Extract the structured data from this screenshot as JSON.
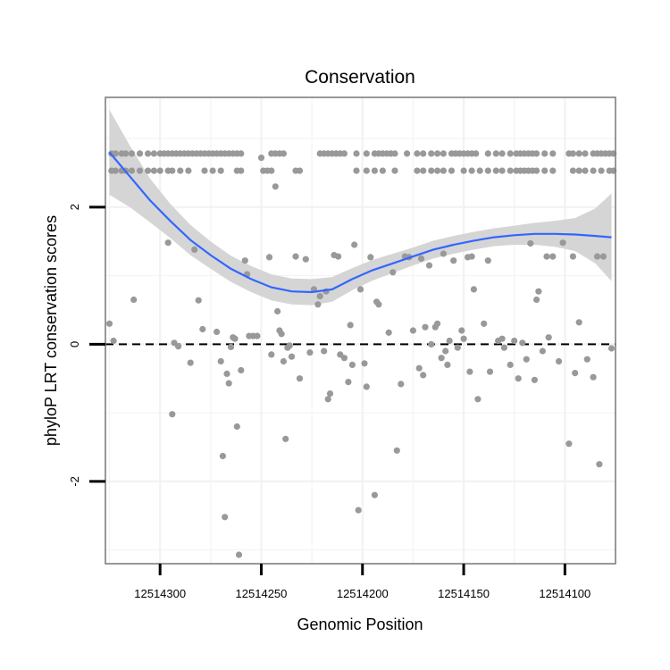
{
  "chart_data": {
    "type": "scatter",
    "title": "Conservation",
    "xlabel": "Genomic Position",
    "ylabel": "phyloP LRT conservation scores",
    "xlim": [
      12514327,
      12514075
    ],
    "ylim": [
      -3.2,
      3.6
    ],
    "x_reversed": true,
    "x_ticks": [
      12514300,
      12514250,
      12514200,
      12514150,
      12514100
    ],
    "x_tick_labels": [
      "12514300",
      "12514250",
      "12514200",
      "12514150",
      "12514100"
    ],
    "y_ticks": [
      -2,
      0,
      2
    ],
    "y_tick_labels": [
      "-2",
      "0",
      "2"
    ],
    "grid": true,
    "reference_line": {
      "y": 0,
      "style": "dashed"
    },
    "colors": {
      "points": "#999999",
      "smooth": "#3366ff",
      "ribbon": "#d3d3d3",
      "panel_border": "#7f7f7f",
      "grid": "#f2f2f2"
    },
    "x_top_band": [
      12514324,
      12514322,
      12514319,
      12514317,
      12514314,
      12514310,
      12514306,
      12514303,
      12514300,
      12514298,
      12514296,
      12514294,
      12514292,
      12514290,
      12514288,
      12514286,
      12514284,
      12514282,
      12514280,
      12514278,
      12514276,
      12514274,
      12514272,
      12514270,
      12514268,
      12514266,
      12514264,
      12514262,
      12514260,
      12514245,
      12514243,
      12514241,
      12514239,
      12514221,
      12514219,
      12514217,
      12514215,
      12514213,
      12514211,
      12514209,
      12514203,
      12514198,
      12514194,
      12514192,
      12514190,
      12514188,
      12514186,
      12514184,
      12514178,
      12514173,
      12514170,
      12514166,
      12514163,
      12514160,
      12514156,
      12514154,
      12514152,
      12514150,
      12514148,
      12514146,
      12514144,
      12514138,
      12514134,
      12514131,
      12514127,
      12514124,
      12514122,
      12514120,
      12514118,
      12514116,
      12514114,
      12514110,
      12514106,
      12514098,
      12514096,
      12514093,
      12514090,
      12514086,
      12514084,
      12514082,
      12514080,
      12514078,
      12514076
    ],
    "x_second_band": [
      12514324,
      12514322,
      12514319,
      12514317,
      12514314,
      12514310,
      12514306,
      12514303,
      12514300,
      12514296,
      12514294,
      12514290,
      12514286,
      12514278,
      12514274,
      12514270,
      12514262,
      12514260,
      12514249,
      12514247,
      12514245,
      12514233,
      12514231,
      12514203,
      12514198,
      12514194,
      12514190,
      12514184,
      12514173,
      12514170,
      12514166,
      12514163,
      12514160,
      12514156,
      12514150,
      12514146,
      12514142,
      12514138,
      12514134,
      12514131,
      12514127,
      12514124,
      12514122,
      12514120,
      12514118,
      12514116,
      12514114,
      12514110,
      12514106,
      12514096,
      12514093,
      12514090,
      12514086,
      12514082,
      12514078,
      12514076
    ],
    "y_top_band": 2.78,
    "y_second_band": 2.53,
    "points": [
      {
        "x": 12514325,
        "y": 0.3
      },
      {
        "x": 12514323,
        "y": 0.05
      },
      {
        "x": 12514313,
        "y": 0.65
      },
      {
        "x": 12514296,
        "y": 1.48
      },
      {
        "x": 12514294,
        "y": -1.02
      },
      {
        "x": 12514293,
        "y": 0.02
      },
      {
        "x": 12514291,
        "y": -0.03
      },
      {
        "x": 12514285,
        "y": -0.27
      },
      {
        "x": 12514283,
        "y": 1.38
      },
      {
        "x": 12514281,
        "y": 0.64
      },
      {
        "x": 12514279,
        "y": 0.22
      },
      {
        "x": 12514272,
        "y": 0.18
      },
      {
        "x": 12514270,
        "y": -0.25
      },
      {
        "x": 12514269,
        "y": -1.63
      },
      {
        "x": 12514268,
        "y": -2.52
      },
      {
        "x": 12514267,
        "y": -0.43
      },
      {
        "x": 12514266,
        "y": -0.57
      },
      {
        "x": 12514265,
        "y": -0.04
      },
      {
        "x": 12514264,
        "y": 0.1
      },
      {
        "x": 12514263,
        "y": 0.08
      },
      {
        "x": 12514262,
        "y": -1.2
      },
      {
        "x": 12514261,
        "y": -3.07
      },
      {
        "x": 12514260,
        "y": -0.38
      },
      {
        "x": 12514258,
        "y": 1.22
      },
      {
        "x": 12514257,
        "y": 1.02
      },
      {
        "x": 12514256,
        "y": 0.12
      },
      {
        "x": 12514254,
        "y": 0.12
      },
      {
        "x": 12514252,
        "y": 0.12
      },
      {
        "x": 12514250,
        "y": 2.72
      },
      {
        "x": 12514246,
        "y": 1.27
      },
      {
        "x": 12514245,
        "y": -0.15
      },
      {
        "x": 12514243,
        "y": 2.3
      },
      {
        "x": 12514242,
        "y": 0.48
      },
      {
        "x": 12514241,
        "y": 0.2
      },
      {
        "x": 12514240,
        "y": 0.15
      },
      {
        "x": 12514239,
        "y": -0.25
      },
      {
        "x": 12514238,
        "y": -1.38
      },
      {
        "x": 12514237,
        "y": -0.05
      },
      {
        "x": 12514236,
        "y": -0.02
      },
      {
        "x": 12514235,
        "y": -0.18
      },
      {
        "x": 12514233,
        "y": 1.28
      },
      {
        "x": 12514231,
        "y": -0.5
      },
      {
        "x": 12514228,
        "y": 1.24
      },
      {
        "x": 12514226,
        "y": -0.12
      },
      {
        "x": 12514224,
        "y": 0.8
      },
      {
        "x": 12514222,
        "y": 0.58
      },
      {
        "x": 12514221,
        "y": 0.7
      },
      {
        "x": 12514219,
        "y": -0.1
      },
      {
        "x": 12514218,
        "y": 0.77
      },
      {
        "x": 12514217,
        "y": -0.8
      },
      {
        "x": 12514216,
        "y": -0.72
      },
      {
        "x": 12514214,
        "y": 1.3
      },
      {
        "x": 12514212,
        "y": 1.28
      },
      {
        "x": 12514211,
        "y": -0.15
      },
      {
        "x": 12514209,
        "y": -0.2
      },
      {
        "x": 12514207,
        "y": -0.55
      },
      {
        "x": 12514206,
        "y": 0.28
      },
      {
        "x": 12514205,
        "y": -0.3
      },
      {
        "x": 12514204,
        "y": 1.45
      },
      {
        "x": 12514202,
        "y": -2.42
      },
      {
        "x": 12514201,
        "y": 0.8
      },
      {
        "x": 12514199,
        "y": -0.28
      },
      {
        "x": 12514198,
        "y": -0.62
      },
      {
        "x": 12514196,
        "y": 1.27
      },
      {
        "x": 12514194,
        "y": -2.2
      },
      {
        "x": 12514193,
        "y": 0.62
      },
      {
        "x": 12514192,
        "y": 0.58
      },
      {
        "x": 12514187,
        "y": 0.17
      },
      {
        "x": 12514185,
        "y": 1.05
      },
      {
        "x": 12514183,
        "y": -1.55
      },
      {
        "x": 12514181,
        "y": -0.58
      },
      {
        "x": 12514179,
        "y": 1.28
      },
      {
        "x": 12514177,
        "y": 1.27
      },
      {
        "x": 12514175,
        "y": 0.2
      },
      {
        "x": 12514172,
        "y": -0.35
      },
      {
        "x": 12514171,
        "y": 1.25
      },
      {
        "x": 12514170,
        "y": -0.45
      },
      {
        "x": 12514169,
        "y": 0.25
      },
      {
        "x": 12514167,
        "y": 1.15
      },
      {
        "x": 12514166,
        "y": 0.0
      },
      {
        "x": 12514164,
        "y": 0.25
      },
      {
        "x": 12514163,
        "y": 0.3
      },
      {
        "x": 12514161,
        "y": -0.2
      },
      {
        "x": 12514160,
        "y": 1.32
      },
      {
        "x": 12514159,
        "y": -0.1
      },
      {
        "x": 12514158,
        "y": -0.3
      },
      {
        "x": 12514157,
        "y": 0.05
      },
      {
        "x": 12514155,
        "y": 1.22
      },
      {
        "x": 12514153,
        "y": -0.05
      },
      {
        "x": 12514151,
        "y": 0.2
      },
      {
        "x": 12514150,
        "y": 0.08
      },
      {
        "x": 12514148,
        "y": 1.27
      },
      {
        "x": 12514147,
        "y": -0.4
      },
      {
        "x": 12514146,
        "y": 1.28
      },
      {
        "x": 12514145,
        "y": 0.8
      },
      {
        "x": 12514143,
        "y": -0.8
      },
      {
        "x": 12514140,
        "y": 0.3
      },
      {
        "x": 12514138,
        "y": 1.22
      },
      {
        "x": 12514137,
        "y": -0.4
      },
      {
        "x": 12514133,
        "y": 0.05
      },
      {
        "x": 12514131,
        "y": 0.08
      },
      {
        "x": 12514130,
        "y": -0.05
      },
      {
        "x": 12514127,
        "y": -0.3
      },
      {
        "x": 12514125,
        "y": 0.05
      },
      {
        "x": 12514123,
        "y": -0.5
      },
      {
        "x": 12514121,
        "y": 0.02
      },
      {
        "x": 12514119,
        "y": -0.22
      },
      {
        "x": 12514117,
        "y": 1.47
      },
      {
        "x": 12514115,
        "y": -0.52
      },
      {
        "x": 12514114,
        "y": 0.65
      },
      {
        "x": 12514113,
        "y": 0.77
      },
      {
        "x": 12514111,
        "y": -0.1
      },
      {
        "x": 12514109,
        "y": 1.28
      },
      {
        "x": 12514108,
        "y": 0.1
      },
      {
        "x": 12514106,
        "y": 1.28
      },
      {
        "x": 12514103,
        "y": -0.25
      },
      {
        "x": 12514101,
        "y": 1.48
      },
      {
        "x": 12514098,
        "y": -1.45
      },
      {
        "x": 12514096,
        "y": 1.28
      },
      {
        "x": 12514095,
        "y": -0.42
      },
      {
        "x": 12514093,
        "y": 0.32
      },
      {
        "x": 12514089,
        "y": -0.22
      },
      {
        "x": 12514086,
        "y": -0.48
      },
      {
        "x": 12514084,
        "y": 1.28
      },
      {
        "x": 12514083,
        "y": -1.75
      },
      {
        "x": 12514081,
        "y": 1.28
      },
      {
        "x": 12514077,
        "y": -0.06
      }
    ],
    "smooth_curve": {
      "x": [
        12514325,
        12514315,
        12514305,
        12514295,
        12514285,
        12514275,
        12514265,
        12514255,
        12514245,
        12514235,
        12514225,
        12514215,
        12514205,
        12514195,
        12514185,
        12514175,
        12514165,
        12514155,
        12514145,
        12514135,
        12514125,
        12514115,
        12514105,
        12514095,
        12514085,
        12514077
      ],
      "y": [
        2.8,
        2.45,
        2.1,
        1.8,
        1.52,
        1.3,
        1.1,
        0.95,
        0.83,
        0.77,
        0.76,
        0.8,
        0.95,
        1.08,
        1.18,
        1.28,
        1.38,
        1.45,
        1.51,
        1.56,
        1.59,
        1.61,
        1.61,
        1.6,
        1.58,
        1.56
      ],
      "lower": [
        2.18,
        2.0,
        1.78,
        1.55,
        1.3,
        1.1,
        0.91,
        0.76,
        0.64,
        0.58,
        0.57,
        0.62,
        0.79,
        0.93,
        1.04,
        1.15,
        1.25,
        1.32,
        1.38,
        1.43,
        1.45,
        1.45,
        1.42,
        1.36,
        1.18,
        0.92
      ],
      "upper": [
        3.42,
        2.9,
        2.42,
        2.05,
        1.74,
        1.5,
        1.29,
        1.14,
        1.02,
        0.96,
        0.95,
        0.98,
        1.11,
        1.23,
        1.32,
        1.41,
        1.51,
        1.58,
        1.64,
        1.69,
        1.73,
        1.77,
        1.8,
        1.84,
        1.98,
        2.2
      ]
    }
  }
}
